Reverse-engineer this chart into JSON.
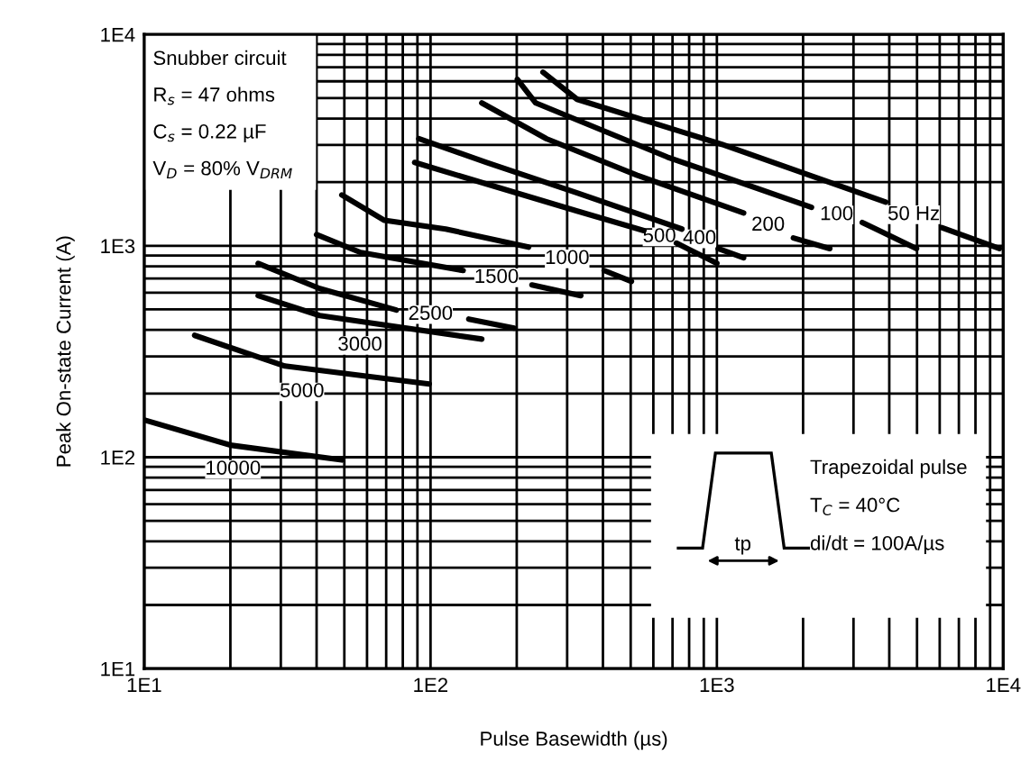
{
  "chart_data": {
    "type": "line",
    "xlabel": "Pulse Basewidth (µs)",
    "ylabel": "Peak On-state Current (A)",
    "log": "xy",
    "xlim": [
      10,
      10000
    ],
    "ylim": [
      10,
      10000
    ],
    "xticks": [
      {
        "value": 10,
        "label": "1E1"
      },
      {
        "value": 100,
        "label": "1E2"
      },
      {
        "value": 1000,
        "label": "1E3"
      },
      {
        "value": 10000,
        "label": "1E4"
      }
    ],
    "yticks": [
      {
        "value": 10,
        "label": "1E1"
      },
      {
        "value": 100,
        "label": "1E2"
      },
      {
        "value": 1000,
        "label": "1E3"
      },
      {
        "value": 10000,
        "label": "1E4"
      }
    ],
    "grid": true,
    "legend": false,
    "marker": "none",
    "line_style": "solid",
    "series": [
      {
        "name": "50 Hz",
        "color": "#000000",
        "x": [
          247,
          325,
          1040,
          3890,
          4870,
          6100,
          9700
        ],
        "values": [
          6620,
          4930,
          3020,
          1610,
          null,
          1220,
          970
        ]
      },
      {
        "name": "100",
        "color": "#000000",
        "x": [
          201,
          233,
          671,
          2140,
          2620,
          3220,
          4980
        ],
        "values": [
          6120,
          4740,
          2630,
          1520,
          null,
          1290,
          970
        ]
      },
      {
        "name": "200",
        "color": "#000000",
        "x": [
          151,
          254,
          525,
          1240,
          1510,
          1850,
          2480
        ],
        "values": [
          4740,
          3210,
          2160,
          1430,
          null,
          1090,
          970
        ]
      },
      {
        "name": "400",
        "color": "#000000",
        "x": [
          91,
          157,
          325,
          755,
          870,
          1010,
          1240
        ],
        "values": [
          3210,
          2480,
          1780,
          1200,
          null,
          970,
          877
        ]
      },
      {
        "name": "500",
        "color": "#000000",
        "x": [
          88,
          157,
          325,
          556,
          630,
          722,
          1000
        ],
        "values": [
          2480,
          1960,
          1460,
          1180,
          null,
          1030,
          826
        ]
      },
      {
        "name": "1000",
        "color": "#000000",
        "x": [
          49,
          69,
          113,
          220,
          300,
          404,
          503
        ],
        "values": [
          1740,
          1320,
          1200,
          986,
          null,
          764,
          679
        ]
      },
      {
        "name": "1500",
        "color": "#000000",
        "x": [
          40,
          57,
          130,
          170,
          226,
          335
        ],
        "values": [
          1130,
          930,
          764,
          null,
          653,
          581
        ]
      },
      {
        "name": "2500",
        "color": "#000000",
        "x": [
          25,
          41,
          76,
          100,
          136,
          196
        ],
        "values": [
          826,
          628,
          497,
          null,
          450,
          408
        ]
      },
      {
        "name": "3000",
        "color": "#000000",
        "x": [
          25,
          41,
          151
        ],
        "values": [
          581,
          468,
          362
        ]
      },
      {
        "name": "5000",
        "color": "#000000",
        "x": [
          15,
          31,
          99
        ],
        "values": [
          377,
          270,
          222
        ]
      },
      {
        "name": "10000",
        "color": "#000000",
        "x": [
          10,
          20,
          49
        ],
        "values": [
          150,
          114,
          97
        ]
      }
    ],
    "annotations": [
      "Snubber circuit",
      "R$_{s}$ = 47 ohms",
      "C$_{s}$ = 0.22 µF",
      "V$_{D}$ = 80% V$_{DRM}$",
      "Trapezoidal pulse",
      "T$_{C}$ = 40°C",
      "di/dt = 100A/µs",
      "tp"
    ]
  }
}
